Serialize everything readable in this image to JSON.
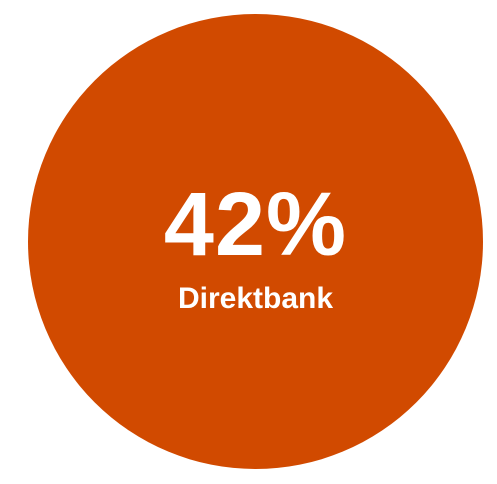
{
  "chart_data": {
    "type": "pie",
    "categories": [
      "Direktbank"
    ],
    "values": [
      42
    ],
    "value_label": "42%",
    "color": "#D14A00"
  }
}
